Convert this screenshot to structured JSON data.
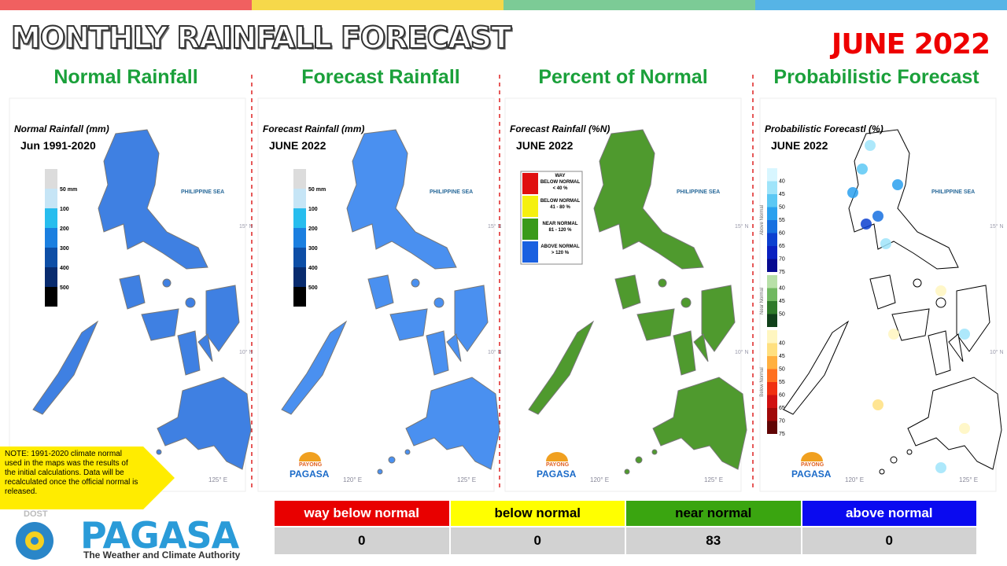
{
  "header": {
    "title": "MONTHLY RAINFALL FORECAST",
    "period": "JUNE 2022"
  },
  "badge": {
    "top": "PAYONG",
    "name": "PAGASA"
  },
  "grid_labels": {
    "lat": [
      "15° N",
      "10° N"
    ],
    "lon": [
      "120° E",
      "125° E"
    ]
  },
  "panels": [
    {
      "heading": "Normal Rainfall",
      "map_title": "Normal Rainfall (mm)",
      "map_subtitle": "Jun 1991-2020",
      "sea_label": "PHILIPPINE SEA",
      "map_color": "#3f80e2",
      "scale": {
        "colors": [
          "#dcdcdc",
          "#c6e5f6",
          "#27bdee",
          "#1a7fe0",
          "#0d4ea6",
          "#082b6e",
          "#000000"
        ],
        "labels": [
          "50 mm",
          "100",
          "200",
          "300",
          "400",
          "500"
        ]
      }
    },
    {
      "heading": "Forecast Rainfall",
      "map_title": "Forecast Rainfall (mm)",
      "map_subtitle": "JUNE 2022",
      "sea_label": "PHILIPPINE SEA",
      "map_color": "#4a90f0",
      "scale": {
        "colors": [
          "#dcdcdc",
          "#c6e5f6",
          "#27bdee",
          "#1a7fe0",
          "#0d4ea6",
          "#082b6e",
          "#000000"
        ],
        "labels": [
          "50 mm",
          "100",
          "200",
          "300",
          "400",
          "500"
        ]
      }
    },
    {
      "heading": "Percent of Normal",
      "map_title": "Forecast Rainfall (%N)",
      "map_subtitle": "JUNE 2022",
      "sea_label": "PHILIPPINE SEA",
      "map_color": "#4f9a2e",
      "classes": [
        {
          "color": "#e01010",
          "lines": [
            "WAY",
            "BELOW NORMAL",
            "< 40 %"
          ]
        },
        {
          "color": "#f5f010",
          "lines": [
            "BELOW NORMAL",
            "41 - 80 %"
          ]
        },
        {
          "color": "#3a9a1a",
          "lines": [
            "NEAR NORMAL",
            "81 - 120 %"
          ]
        },
        {
          "color": "#1a60e0",
          "lines": [
            "ABOVE NORMAL",
            "> 120 %"
          ]
        }
      ]
    },
    {
      "heading": "Probabilistic Forecast",
      "map_title": "Probabilistic Forecastl (%)",
      "map_subtitle": "JUNE 2022",
      "sea_label": "PHILIPPINE SEA",
      "map_color": "#ffffff",
      "groups": [
        {
          "label": "Above Normal",
          "colors": [
            "#d8f6ff",
            "#9fe4fa",
            "#5cc8f4",
            "#2aa0ee",
            "#1670e0",
            "#0c40d0",
            "#0a20c0",
            "#060a90"
          ],
          "ticks": [
            "40",
            "45",
            "50",
            "55",
            "60",
            "65",
            "70",
            "75"
          ]
        },
        {
          "label": "Near Normal",
          "colors": [
            "#b8e0a8",
            "#70b860",
            "#2f7a2a",
            "#10401a"
          ],
          "ticks": [
            "40",
            "45",
            "50"
          ]
        },
        {
          "label": "Below Normal",
          "colors": [
            "#fff6c0",
            "#ffe080",
            "#ffb040",
            "#ff7020",
            "#f03010",
            "#d01010",
            "#a00808",
            "#600404"
          ],
          "ticks": [
            "40",
            "45",
            "50",
            "55",
            "60",
            "65",
            "70",
            "75"
          ]
        }
      ]
    }
  ],
  "note": "NOTE: 1991-2020 climate normal used in the maps was the results of the initial calculations. Data will be recalculated once the official normal is released.",
  "logo": {
    "agency": "DOST",
    "name": "PAGASA",
    "tagline": "The Weather and Climate Authority"
  },
  "table": {
    "headers": [
      "way below normal",
      "below normal",
      "near normal",
      "above normal"
    ],
    "header_colors": [
      "#e80000",
      "#ffff00",
      "#3aa510",
      "#0a0af0"
    ],
    "header_text": [
      "#ffffff",
      "#000000",
      "#000000",
      "#ffffff"
    ],
    "rows": [
      [
        "0",
        "0",
        "83",
        "0"
      ]
    ]
  }
}
